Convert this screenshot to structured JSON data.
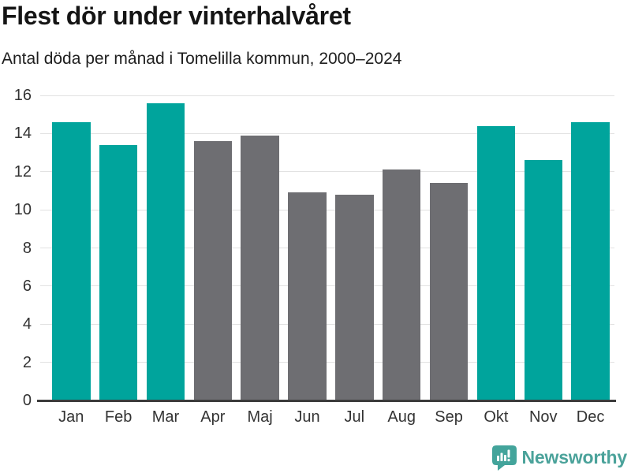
{
  "title": "Flest dör under vinterhalvåret",
  "subtitle": "Antal döda per månad i Tomelilla kommun, 2000–2024",
  "branding": {
    "logo_text": "Newsworthy",
    "logo_icon": "bar-chart-speech-bubble-icon"
  },
  "colors": {
    "winter_bar": "#00a49c",
    "summer_bar": "#6e6e72",
    "gridline": "#e2e2e2",
    "axis_line": "#3b3b3b",
    "tick_text": "#333333",
    "title_text": "#151515",
    "logo": "#4aa29a"
  },
  "chart_data": {
    "type": "bar",
    "title": "Flest dör under vinterhalvåret",
    "subtitle": "Antal döda per månad i Tomelilla kommun, 2000–2024",
    "categories": [
      "Jan",
      "Feb",
      "Mar",
      "Apr",
      "Maj",
      "Jun",
      "Jul",
      "Aug",
      "Sep",
      "Okt",
      "Nov",
      "Dec"
    ],
    "values": [
      14.6,
      13.4,
      15.6,
      13.6,
      13.9,
      10.9,
      10.8,
      12.1,
      11.4,
      14.4,
      12.6,
      14.6
    ],
    "seasons": [
      "winter",
      "winter",
      "winter",
      "summer",
      "summer",
      "summer",
      "summer",
      "summer",
      "summer",
      "winter",
      "winter",
      "winter"
    ],
    "ylim": [
      0,
      16
    ],
    "yticks": [
      0,
      2,
      4,
      6,
      8,
      10,
      12,
      14,
      16
    ],
    "grid": "horizontal-light",
    "legend": "none",
    "xlabel": "",
    "ylabel": ""
  }
}
